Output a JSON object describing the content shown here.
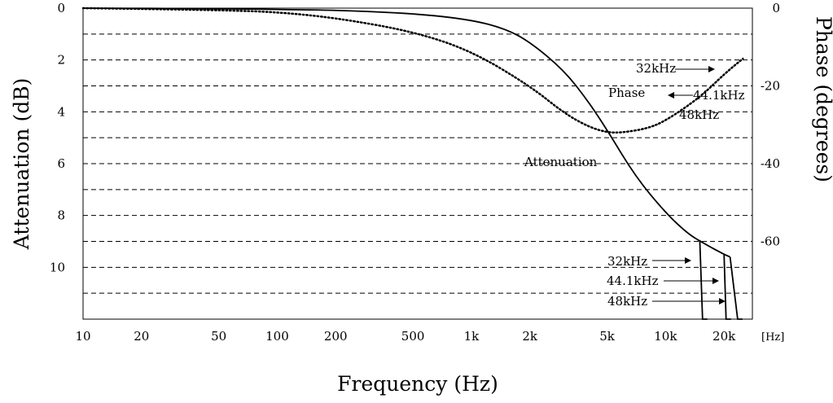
{
  "chart_data": {
    "type": "line",
    "title": "",
    "xlabel": "Frequency (Hz)",
    "x_unit_label": "[Hz]",
    "ylabel_left": "Attenuation (dB)",
    "ylabel_right": "Phase (degrees)",
    "x_scale": "log",
    "xlim": [
      10,
      28000
    ],
    "ylim_left": [
      12,
      0
    ],
    "ylim_right": [
      -80,
      0
    ],
    "grid": "horizontal dashed",
    "x_ticks": [
      {
        "value": 10,
        "label": "10"
      },
      {
        "value": 20,
        "label": "20"
      },
      {
        "value": 50,
        "label": "50"
      },
      {
        "value": 100,
        "label": "100"
      },
      {
        "value": 200,
        "label": "200"
      },
      {
        "value": 500,
        "label": "500"
      },
      {
        "value": 1000,
        "label": "1k"
      },
      {
        "value": 2000,
        "label": "2k"
      },
      {
        "value": 5000,
        "label": "5k"
      },
      {
        "value": 10000,
        "label": "10k"
      },
      {
        "value": 20000,
        "label": "20k"
      }
    ],
    "y_left_ticks": [
      {
        "value": 0,
        "label": "0"
      },
      {
        "value": 2,
        "label": "2"
      },
      {
        "value": 4,
        "label": "4"
      },
      {
        "value": 6,
        "label": "6"
      },
      {
        "value": 8,
        "label": "8"
      },
      {
        "value": 10,
        "label": "10"
      }
    ],
    "y_right_ticks": [
      {
        "value": 0,
        "label": "0"
      },
      {
        "value": -20,
        "label": "-20"
      },
      {
        "value": -40,
        "label": "-40"
      },
      {
        "value": -60,
        "label": "-60"
      }
    ],
    "series": [
      {
        "name": "Attenuation",
        "axis": "left",
        "style": "solid",
        "x": [
          10,
          50,
          100,
          200,
          500,
          1000,
          1500,
          2000,
          3000,
          4000,
          5000,
          7000,
          10000,
          13000,
          15500,
          20000,
          21500
        ],
        "y": [
          0,
          0.02,
          0.05,
          0.08,
          0.2,
          0.45,
          0.8,
          1.3,
          2.4,
          3.6,
          4.7,
          6.5,
          7.9,
          8.7,
          9.05,
          9.5,
          9.6
        ]
      },
      {
        "name": "Phase",
        "axis": "right",
        "style": "dotted",
        "x": [
          10,
          50,
          100,
          200,
          500,
          1000,
          2000,
          3000,
          4000,
          5000,
          6000,
          8000,
          10000,
          15000,
          20000,
          25000
        ],
        "y": [
          0,
          -0.5,
          -1,
          -2.5,
          -6,
          -11,
          -20,
          -27,
          -30.5,
          -32,
          -32,
          -31,
          -29,
          -23,
          -17,
          -13
        ]
      }
    ],
    "cutoffs": [
      {
        "label": "32kHz",
        "x_from": 15000,
        "x_to": 15500,
        "attenuation_from": 8.95
      },
      {
        "label": "44.1kHz",
        "x_from": 20000,
        "x_to": 20500,
        "attenuation_from": 9.5
      },
      {
        "label": "48kHz",
        "x_from": 21500,
        "x_to": 23500,
        "attenuation_from": 9.6
      }
    ],
    "annotations": {
      "attenuation_label": "Attenuation",
      "phase_label": "Phase",
      "phase_32k": "32kHz",
      "phase_44k": "44.1kHz",
      "phase_48k": "48kHz",
      "cut_32k": "32kHz",
      "cut_44k": "44.1kHz",
      "cut_48k": "48kHz"
    }
  }
}
